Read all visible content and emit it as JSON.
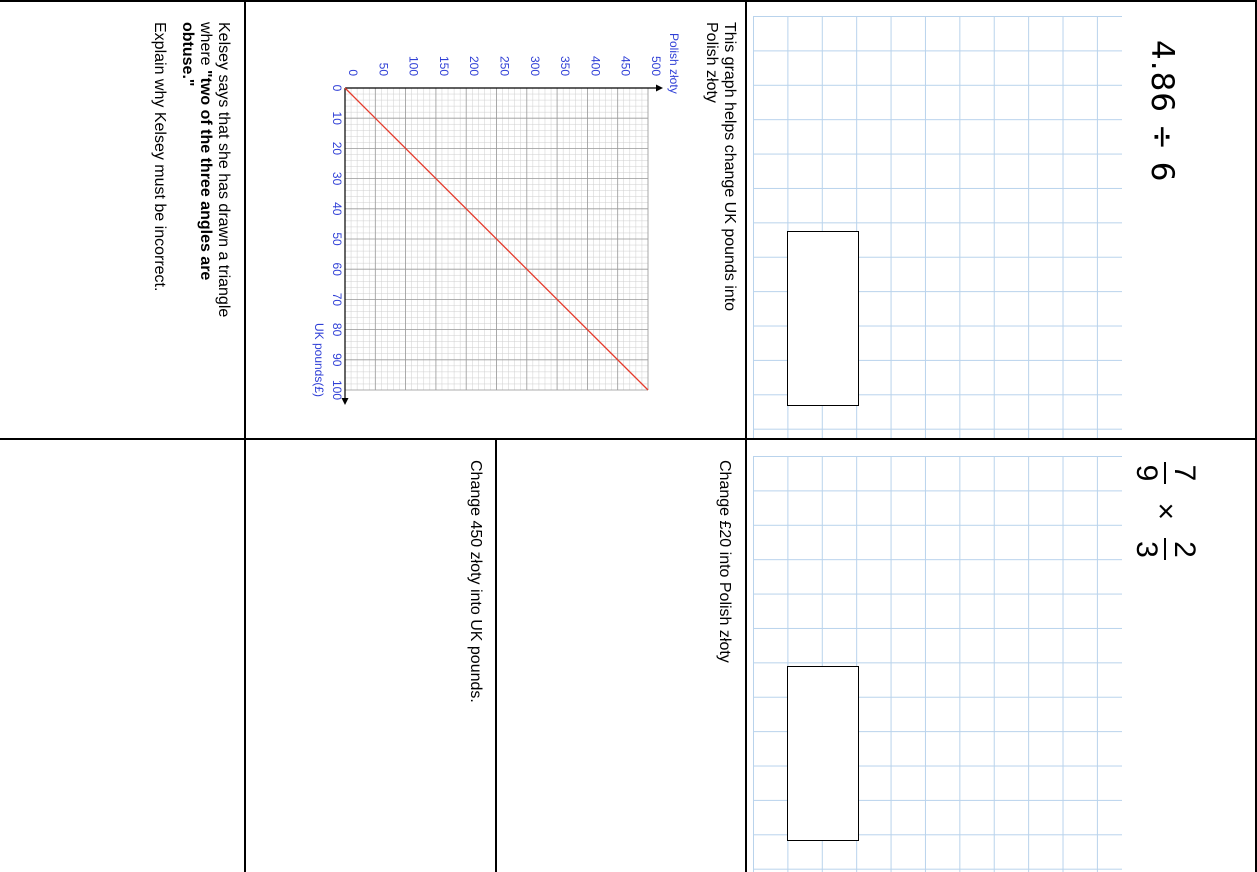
{
  "q1": {
    "expression": "4.86 ÷ 6"
  },
  "q2": {
    "numerator_1": "7",
    "denominator_1": "9",
    "operator": "×",
    "numerator_2": "2",
    "denominator_2": "3"
  },
  "q3": {
    "intro": [
      "This graph helps change UK pounds into",
      "Polish złoty"
    ],
    "part_a": "Change £20 into Polish złoty",
    "part_b": "Change 450 złoty into UK pounds."
  },
  "q4": {
    "line1": "Kelsey says that she has drawn a triangle",
    "line2_pre": "where ",
    "line2_bold": "\"two of the three angles are",
    "line3_bold": "obtuse.\"",
    "line4": "Explain why Kelsey must be incorrect."
  },
  "chart_data": {
    "type": "line",
    "xlabel": "UK pounds(£)",
    "ylabel": "Polish złoty",
    "xlim": [
      0,
      100
    ],
    "ylim": [
      0,
      500
    ],
    "x_ticks": [
      "0",
      "10",
      "20",
      "30",
      "40",
      "50",
      "60",
      "70",
      "80",
      "90",
      "100"
    ],
    "y_ticks": [
      "0",
      "50",
      "100",
      "150",
      "200",
      "250",
      "300",
      "350",
      "400",
      "450",
      "500"
    ],
    "grid": true,
    "series": [
      {
        "x": [
          0,
          100
        ],
        "y": [
          0,
          500
        ],
        "color": "#e53b2c"
      }
    ]
  }
}
